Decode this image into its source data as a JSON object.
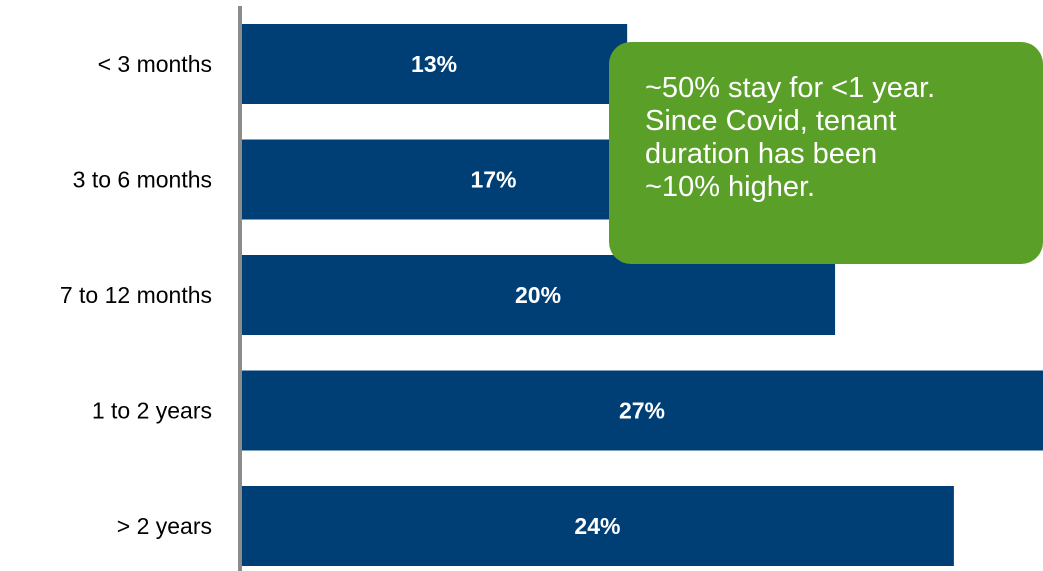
{
  "colors": {
    "bar": "#003f76",
    "axis": "#8c8c8c",
    "callout": "#5a9f28"
  },
  "chart_data": {
    "type": "bar",
    "orientation": "horizontal",
    "categories": [
      "< 3 months",
      "3 to 6 months",
      "7 to 12 months",
      "1 to 2 years",
      "> 2 years"
    ],
    "values": [
      13,
      17,
      20,
      27,
      24
    ],
    "value_labels": [
      "13%",
      "17%",
      "20%",
      "27%",
      "24%"
    ],
    "xlim": [
      0,
      27
    ],
    "grid": false,
    "legend": "none"
  },
  "callout": {
    "lines": [
      "~50% stay for <1 year.",
      "Since Covid, tenant",
      "duration has been",
      "~10% higher."
    ]
  }
}
